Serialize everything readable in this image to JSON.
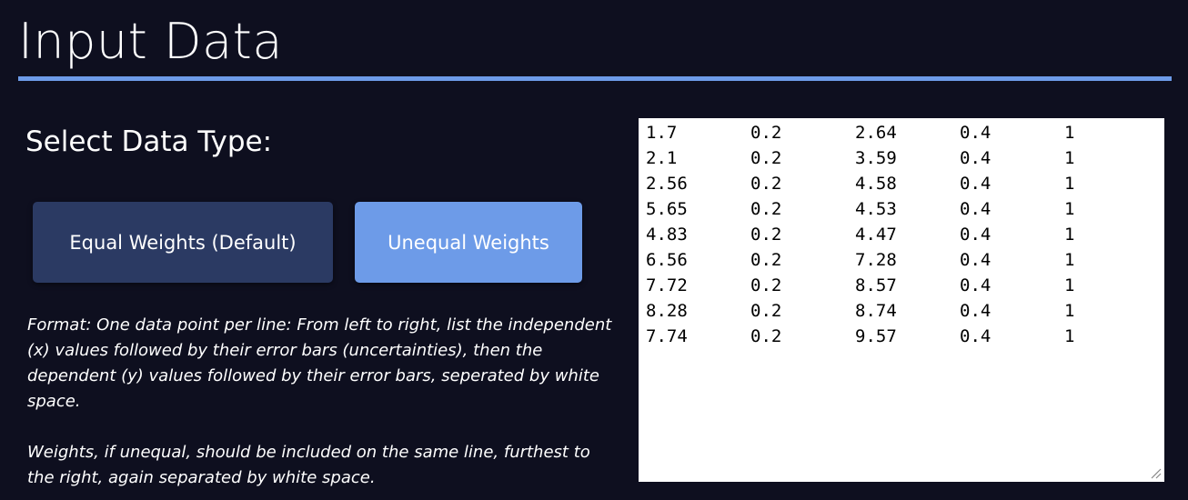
{
  "header": {
    "title": "Input Data"
  },
  "selector": {
    "label": "Select Data Type:",
    "buttons": {
      "equal_label": "Equal Weights (Default)",
      "unequal_label": "Unequal Weights"
    },
    "selected": "Unequal Weights"
  },
  "instructions": {
    "format": "Format: One data point per line: From left to right, list the independent (x) values followed by their error bars (uncertainties), then the dependent (y) values followed by their error bars, seperated by white space.",
    "weights": "Weights, if unequal, should be included on the same line, furthest to the right, again separated by white space."
  },
  "data_input": {
    "rows": [
      [
        "1.7",
        "0.2",
        "2.64",
        "0.4",
        "1"
      ],
      [
        "2.1",
        "0.2",
        "3.59",
        "0.4",
        "1"
      ],
      [
        "2.56",
        "0.2",
        "4.58",
        "0.4",
        "1"
      ],
      [
        "5.65",
        "0.2",
        "4.53",
        "0.4",
        "1"
      ],
      [
        "4.83",
        "0.2",
        "4.47",
        "0.4",
        "1"
      ],
      [
        "6.56",
        "0.2",
        "7.28",
        "0.4",
        "1"
      ],
      [
        "7.72",
        "0.2",
        "8.57",
        "0.4",
        "1"
      ],
      [
        "8.28",
        "0.2",
        "8.74",
        "0.4",
        "1"
      ],
      [
        "7.74",
        "0.2",
        "9.57",
        "0.4",
        "1"
      ]
    ]
  },
  "colors": {
    "background": "#0e0f1f",
    "accent": "#6d9be8",
    "button_default": "#2b3a63",
    "button_active": "#6d9be8"
  }
}
